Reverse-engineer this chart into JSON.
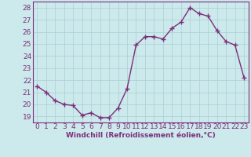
{
  "x": [
    0,
    1,
    2,
    3,
    4,
    5,
    6,
    7,
    8,
    9,
    10,
    11,
    12,
    13,
    14,
    15,
    16,
    17,
    18,
    19,
    20,
    21,
    22,
    23
  ],
  "y": [
    21.5,
    21.0,
    20.3,
    20.0,
    19.9,
    19.1,
    19.3,
    18.9,
    18.9,
    19.7,
    21.3,
    24.9,
    25.6,
    25.6,
    25.4,
    26.3,
    26.8,
    28.0,
    27.5,
    27.3,
    26.1,
    25.2,
    24.9,
    22.2
  ],
  "line_color": "#7b2f7b",
  "marker": "+",
  "marker_size": 4,
  "bg_color": "#cce9ec",
  "grid_color": "#aacfd4",
  "xlabel": "Windchill (Refroidissement éolien,°C)",
  "ylim": [
    18.5,
    28.5
  ],
  "xlim": [
    -0.5,
    23.5
  ],
  "yticks": [
    19,
    20,
    21,
    22,
    23,
    24,
    25,
    26,
    27,
    28
  ],
  "xticks": [
    0,
    1,
    2,
    3,
    4,
    5,
    6,
    7,
    8,
    9,
    10,
    11,
    12,
    13,
    14,
    15,
    16,
    17,
    18,
    19,
    20,
    21,
    22,
    23
  ],
  "xlabel_fontsize": 6.5,
  "tick_fontsize": 6.5,
  "line_width": 1.0
}
